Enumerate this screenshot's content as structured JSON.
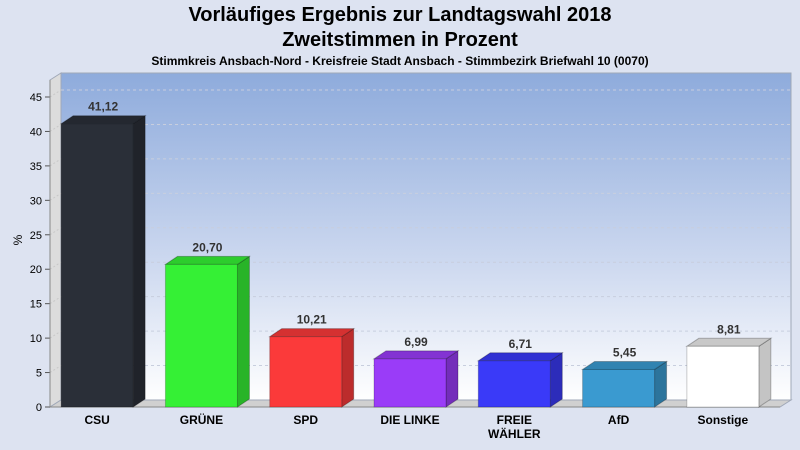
{
  "chart_data": {
    "type": "bar",
    "title": "Vorläufiges Ergebnis zur Landtagswahl 2018",
    "subtitle": "Zweitstimmen in Prozent",
    "caption": "Stimmkreis Ansbach-Nord - Kreisfreie Stadt Ansbach - Stimmbezirk Briefwahl 10 (0070)",
    "xlabel": "",
    "ylabel": "%",
    "ylim": [
      0,
      45
    ],
    "yticks": [
      "0",
      "5",
      "10",
      "15",
      "20",
      "25",
      "30",
      "35",
      "40",
      "45"
    ],
    "grid": true,
    "categories": [
      "CSU",
      "GRÜNE",
      "SPD",
      "DIE LINKE",
      "FREIE WÄHLER",
      "AfD",
      "Sonstige"
    ],
    "category_lines": [
      [
        "CSU"
      ],
      [
        "GRÜNE"
      ],
      [
        "SPD"
      ],
      [
        "DIE LINKE"
      ],
      [
        "FREIE",
        "WÄHLER"
      ],
      [
        "AfD"
      ],
      [
        "Sonstige"
      ]
    ],
    "values": [
      41.12,
      20.7,
      10.21,
      6.99,
      6.71,
      5.45,
      8.81
    ],
    "value_labels": [
      "41,12",
      "20,70",
      "10,21",
      "6,99",
      "6,71",
      "5,45",
      "8,81"
    ],
    "colors": [
      "#2a2f38",
      "#35f035",
      "#fb3a3a",
      "#9a3cf8",
      "#3a3af8",
      "#3a9ad0",
      "#ffffff"
    ]
  }
}
